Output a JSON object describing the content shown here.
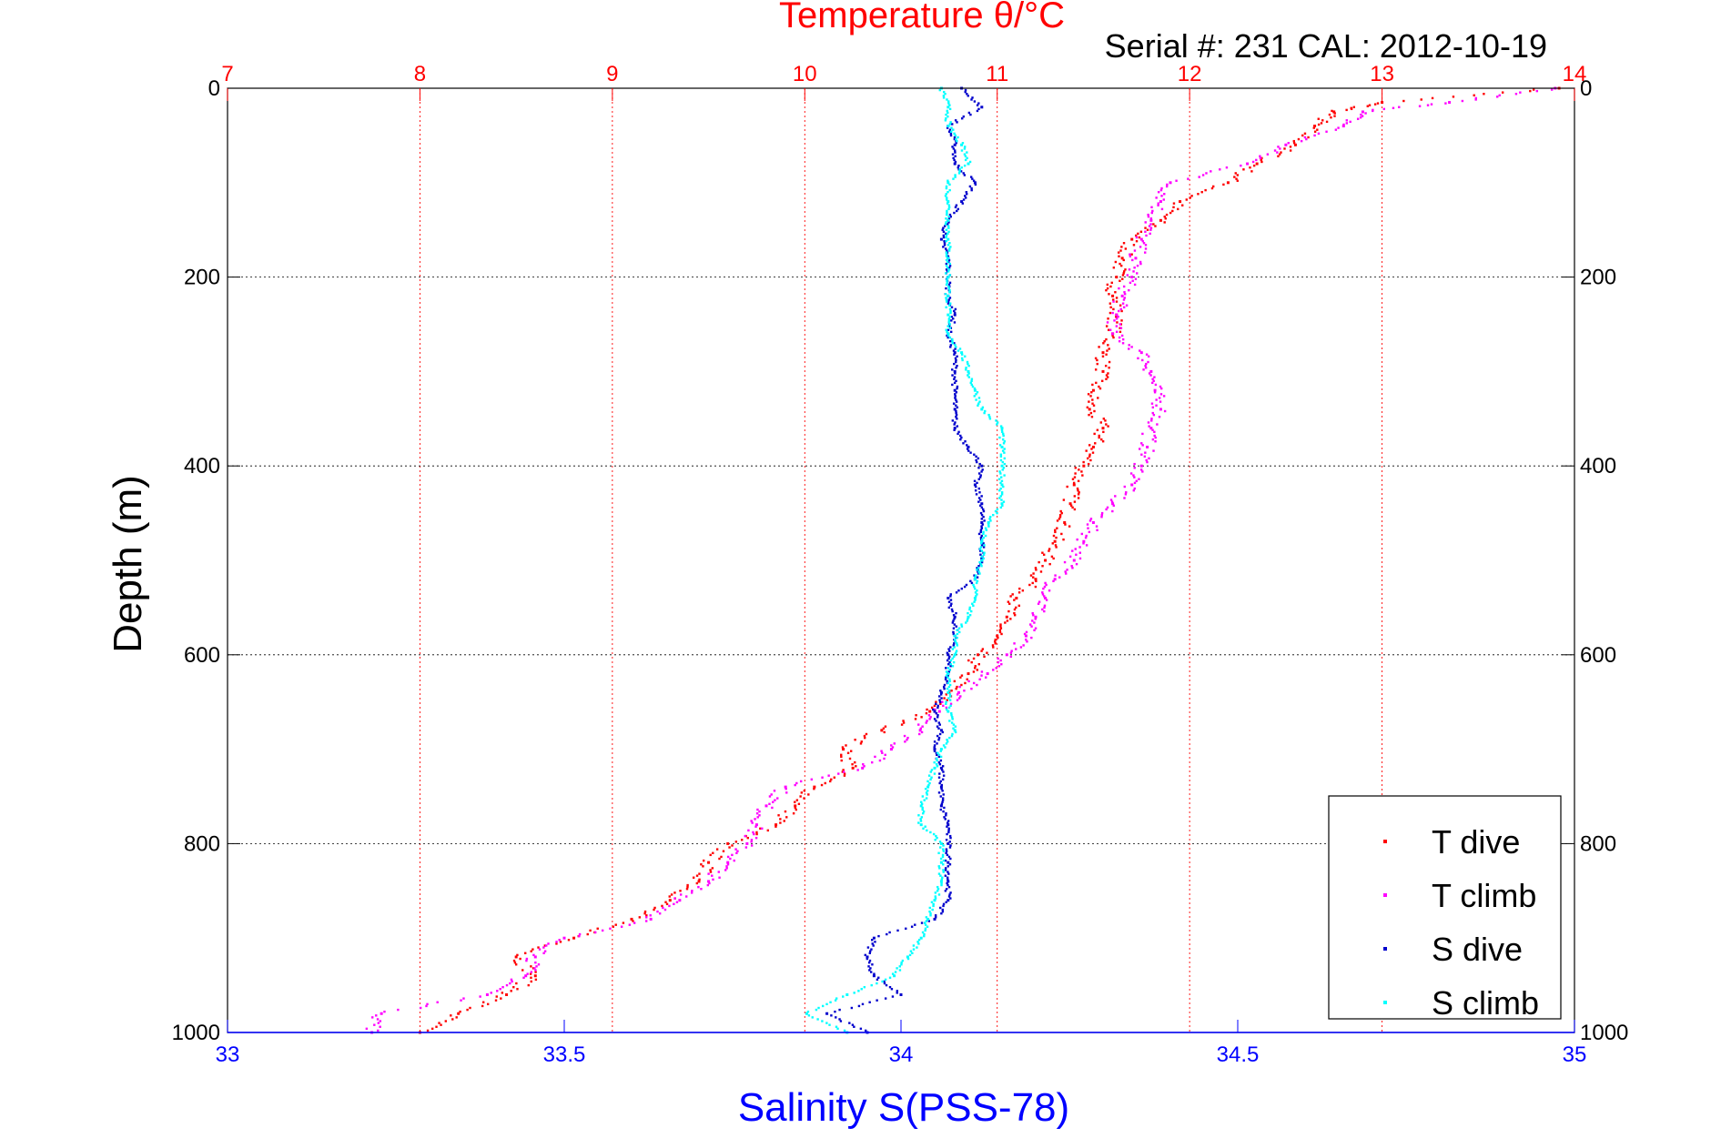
{
  "chart_data": {
    "type": "scatter",
    "title": "Temperature θ/°C",
    "subtitle": "Serial #: 231  CAL: 2012-10-19",
    "xlabel": "Salinity S(PSS-78)",
    "ylabel": "Depth (m)",
    "top_axis": {
      "label": "Temperature θ/°C",
      "range": [
        7,
        14
      ],
      "ticks": [
        "7",
        "8",
        "9",
        "10",
        "11",
        "12",
        "13",
        "14"
      ]
    },
    "bottom_axis": {
      "label": "Salinity S(PSS-78)",
      "range": [
        33,
        35
      ],
      "ticks": [
        "33",
        "33.5",
        "34",
        "34.5",
        "35"
      ]
    },
    "y_axis": {
      "label": "Depth (m)",
      "range": [
        0,
        1000
      ],
      "reversed": true,
      "ticks": [
        "0",
        "200",
        "400",
        "600",
        "800",
        "1000"
      ]
    },
    "grid": true,
    "legend_position": "bottom-right",
    "colors": {
      "T dive": "#ff0000",
      "T climb": "#ff00ff",
      "S dive": "#0000cc",
      "S climb": "#00ffff",
      "top_axis": "#ff0000",
      "bottom_axis": "#0000ff"
    },
    "series": [
      {
        "name": "T dive",
        "axis": "temperature",
        "depth": [
          0,
          15,
          25,
          40,
          60,
          80,
          100,
          120,
          140,
          160,
          180,
          200,
          220,
          240,
          260,
          280,
          300,
          320,
          340,
          360,
          380,
          400,
          420,
          440,
          460,
          480,
          500,
          520,
          540,
          560,
          580,
          600,
          620,
          640,
          660,
          680,
          700,
          720,
          740,
          760,
          780,
          800,
          820,
          840,
          860,
          880,
          900,
          920,
          940,
          960,
          980,
          1000
        ],
        "values": [
          13.92,
          13.0,
          12.75,
          12.65,
          12.55,
          12.35,
          12.2,
          11.95,
          11.85,
          11.7,
          11.65,
          11.62,
          11.6,
          11.62,
          11.6,
          11.55,
          11.55,
          11.5,
          11.48,
          11.55,
          11.5,
          11.45,
          11.4,
          11.38,
          11.35,
          11.3,
          11.25,
          11.2,
          11.1,
          11.05,
          11.0,
          10.9,
          10.85,
          10.75,
          10.65,
          10.4,
          10.2,
          10.25,
          10.05,
          9.95,
          9.85,
          9.6,
          9.5,
          9.45,
          9.3,
          9.1,
          8.8,
          8.5,
          8.6,
          8.45,
          8.2,
          8.0
        ]
      },
      {
        "name": "T climb",
        "axis": "temperature",
        "depth": [
          0,
          15,
          25,
          40,
          60,
          80,
          100,
          120,
          140,
          160,
          180,
          200,
          220,
          240,
          260,
          280,
          300,
          320,
          340,
          360,
          380,
          400,
          420,
          440,
          460,
          480,
          500,
          520,
          540,
          560,
          580,
          600,
          620,
          640,
          660,
          680,
          700,
          720,
          740,
          760,
          780,
          800,
          820,
          840,
          860,
          880,
          900,
          920,
          940,
          960,
          980,
          1000
        ],
        "values": [
          13.9,
          13.35,
          12.9,
          12.8,
          12.5,
          12.3,
          11.9,
          11.85,
          11.8,
          11.75,
          11.72,
          11.7,
          11.65,
          11.62,
          11.6,
          11.75,
          11.8,
          11.82,
          11.85,
          11.8,
          11.78,
          11.75,
          11.7,
          11.6,
          11.5,
          11.45,
          11.4,
          11.3,
          11.25,
          11.2,
          11.15,
          11.05,
          10.95,
          10.8,
          10.7,
          10.6,
          10.45,
          10.3,
          9.9,
          9.8,
          9.75,
          9.7,
          9.6,
          9.5,
          9.35,
          9.2,
          8.75,
          8.6,
          8.55,
          8.35,
          7.8,
          7.75
        ]
      },
      {
        "name": "S dive",
        "axis": "salinity",
        "depth": [
          0,
          20,
          40,
          60,
          80,
          100,
          120,
          140,
          160,
          180,
          200,
          220,
          240,
          260,
          280,
          300,
          320,
          340,
          360,
          380,
          400,
          420,
          440,
          460,
          480,
          500,
          520,
          540,
          560,
          580,
          600,
          620,
          640,
          660,
          680,
          700,
          720,
          740,
          760,
          780,
          800,
          820,
          840,
          860,
          880,
          900,
          920,
          940,
          960,
          980,
          1000
        ],
        "values": [
          34.09,
          34.12,
          34.07,
          34.08,
          34.08,
          34.11,
          34.09,
          34.07,
          34.06,
          34.07,
          34.07,
          34.07,
          34.08,
          34.07,
          34.08,
          34.08,
          34.08,
          34.08,
          34.08,
          34.1,
          34.12,
          34.11,
          34.12,
          34.12,
          34.12,
          34.12,
          34.11,
          34.07,
          34.08,
          34.08,
          34.07,
          34.07,
          34.06,
          34.05,
          34.06,
          34.05,
          34.06,
          34.06,
          34.06,
          34.07,
          34.07,
          34.07,
          34.07,
          34.07,
          34.05,
          33.96,
          33.95,
          33.96,
          34.0,
          33.89,
          33.95
        ]
      },
      {
        "name": "S climb",
        "axis": "salinity",
        "depth": [
          0,
          20,
          40,
          60,
          80,
          100,
          120,
          140,
          160,
          180,
          200,
          220,
          240,
          260,
          280,
          300,
          320,
          340,
          360,
          380,
          400,
          420,
          440,
          460,
          480,
          500,
          520,
          540,
          560,
          580,
          600,
          620,
          640,
          660,
          680,
          700,
          720,
          740,
          760,
          780,
          800,
          820,
          840,
          860,
          880,
          900,
          920,
          940,
          960,
          980,
          1000
        ],
        "values": [
          34.06,
          34.07,
          34.07,
          34.09,
          34.1,
          34.07,
          34.07,
          34.07,
          34.07,
          34.07,
          34.07,
          34.07,
          34.07,
          34.07,
          34.09,
          34.1,
          34.11,
          34.12,
          34.15,
          34.15,
          34.15,
          34.15,
          34.15,
          34.13,
          34.12,
          34.12,
          34.11,
          34.11,
          34.1,
          34.08,
          34.08,
          34.07,
          34.07,
          34.07,
          34.08,
          34.06,
          34.05,
          34.04,
          34.03,
          34.03,
          34.06,
          34.06,
          34.06,
          34.05,
          34.04,
          34.03,
          34.01,
          33.99,
          33.92,
          33.86,
          33.92
        ]
      }
    ]
  }
}
